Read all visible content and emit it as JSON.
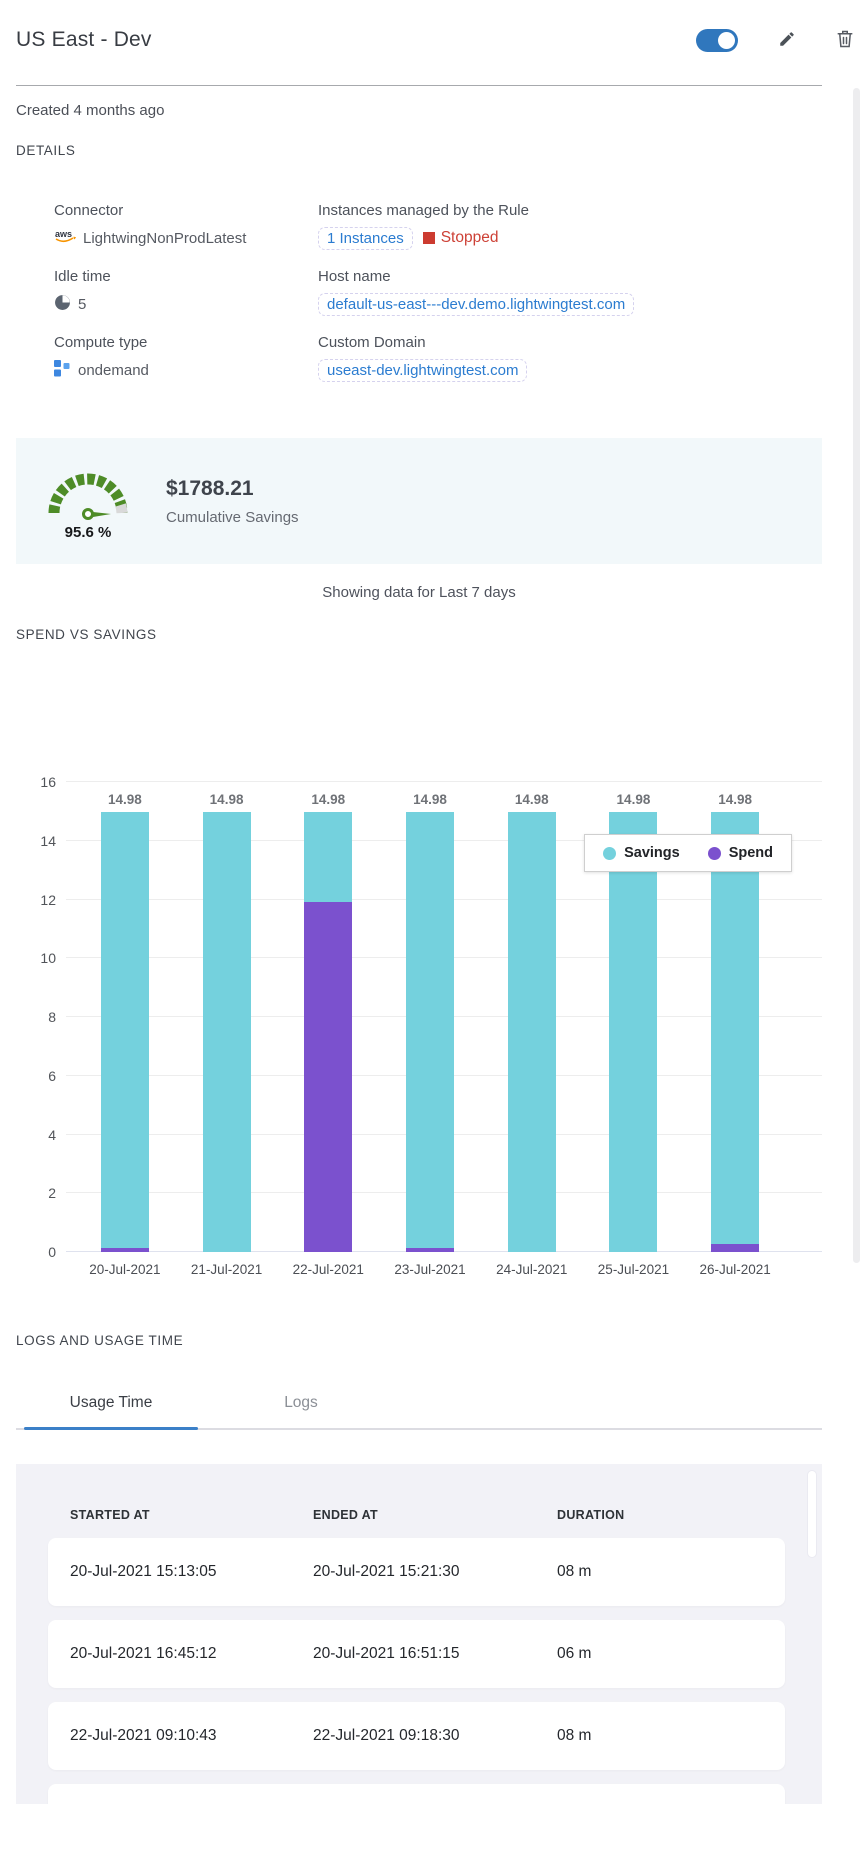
{
  "header": {
    "title": "US East - Dev",
    "toggle_state": "on"
  },
  "meta": {
    "created": "Created 4 months ago"
  },
  "details": {
    "heading": "DETAILS",
    "connector": {
      "label": "Connector",
      "value": "LightwingNonProdLatest"
    },
    "instances": {
      "label": "Instances managed by the Rule",
      "link": "1 Instances",
      "status": "Stopped"
    },
    "idle_time": {
      "label": "Idle time",
      "value": "5"
    },
    "host_name": {
      "label": "Host name",
      "value": "default-us-east---dev.demo.lightwingtest.com"
    },
    "compute_type": {
      "label": "Compute type",
      "value": "ondemand"
    },
    "custom_domain": {
      "label": "Custom Domain",
      "value": "useast-dev.lightwingtest.com"
    }
  },
  "savings": {
    "percent": "95.6 %",
    "amount": "$1788.21",
    "caption": "Cumulative Savings"
  },
  "period_note": "Showing data for Last 7 days",
  "chart_heading": "SPEND VS SAVINGS",
  "chart_data": {
    "type": "bar",
    "stacked": true,
    "title": "SPEND VS SAVINGS",
    "categories": [
      "20-Jul-2021",
      "21-Jul-2021",
      "22-Jul-2021",
      "23-Jul-2021",
      "24-Jul-2021",
      "25-Jul-2021",
      "26-Jul-2021"
    ],
    "series": [
      {
        "name": "Savings",
        "color": "#74d1dd",
        "values": [
          14.86,
          14.98,
          3.08,
          14.86,
          14.98,
          14.98,
          14.71
        ]
      },
      {
        "name": "Spend",
        "color": "#7b51ce",
        "values": [
          0.12,
          0,
          11.9,
          0.12,
          0,
          0,
          0.27
        ]
      }
    ],
    "bar_totals": [
      "14.98",
      "14.98",
      "14.98",
      "14.98",
      "14.98",
      "14.98",
      "14.98"
    ],
    "ylim": [
      0,
      16
    ],
    "yticks": [
      0,
      2,
      4,
      6,
      8,
      10,
      12,
      14,
      16
    ],
    "grid": true,
    "legend_position": "top-right-inside"
  },
  "logs": {
    "heading": "LOGS AND USAGE TIME",
    "tabs": [
      {
        "label": "Usage Time",
        "active": true
      },
      {
        "label": "Logs",
        "active": false
      }
    ],
    "table": {
      "columns": [
        "STARTED AT",
        "ENDED AT",
        "DURATION"
      ],
      "rows": [
        {
          "started": "20-Jul-2021 15:13:05",
          "ended": "20-Jul-2021 15:21:30",
          "duration": "08 m"
        },
        {
          "started": "20-Jul-2021 16:45:12",
          "ended": "20-Jul-2021 16:51:15",
          "duration": "06 m"
        },
        {
          "started": "22-Jul-2021 09:10:43",
          "ended": "22-Jul-2021 09:18:30",
          "duration": "08 m"
        }
      ]
    }
  },
  "colors": {
    "toggle_blue": "#3077bd",
    "link_blue": "#2b7cd0",
    "status_red": "#cc3b30",
    "savings_teal": "#74d1dd",
    "spend_purple": "#7b51ce",
    "gauge_green": "#4e8c27",
    "card_bg": "#f2f8fa",
    "panel_bg": "#f2f2f7"
  }
}
